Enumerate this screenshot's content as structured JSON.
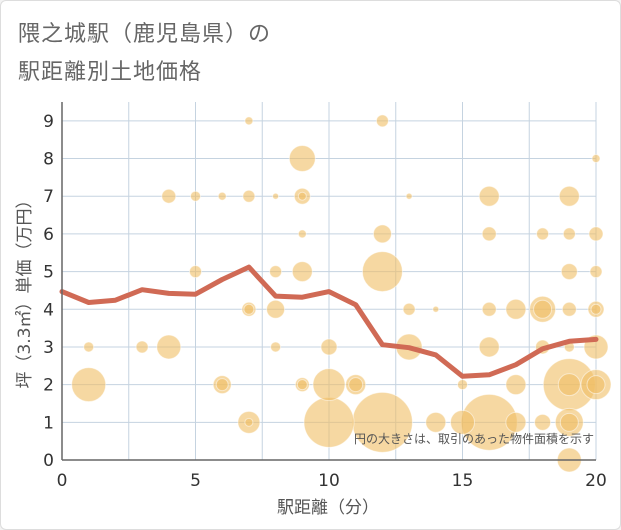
{
  "title_line1": "隈之城駅（鹿児島県）の",
  "title_line2": "駅距離別土地価格",
  "chart_data": {
    "type": "scatter",
    "xlabel": "駅距離（分）",
    "ylabel": "坪（3.3㎡）単価（万円）",
    "xlim": [
      0,
      20
    ],
    "ylim": [
      0,
      9.5
    ],
    "xticks": [
      "0",
      "5",
      "10",
      "15",
      "20"
    ],
    "yticks": [
      "0",
      "1",
      "2",
      "3",
      "4",
      "5",
      "6",
      "7",
      "8",
      "9"
    ],
    "grid": true,
    "note": "円の大きさは、取引のあった物件面積を示す",
    "colors": {
      "bubble": "#f0be64",
      "line": "#d06a55",
      "grid": "#c5d3e0",
      "axis": "#666666"
    },
    "bubbles": [
      {
        "x": 1,
        "y": 2.0,
        "s": 17
      },
      {
        "x": 1,
        "y": 3.0,
        "s": 5
      },
      {
        "x": 3,
        "y": 3.0,
        "s": 6
      },
      {
        "x": 4,
        "y": 3.0,
        "s": 12
      },
      {
        "x": 4,
        "y": 7.0,
        "s": 7
      },
      {
        "x": 5,
        "y": 7.0,
        "s": 5
      },
      {
        "x": 5,
        "y": 5.0,
        "s": 6
      },
      {
        "x": 6,
        "y": 7.0,
        "s": 4
      },
      {
        "x": 6,
        "y": 2.0,
        "s": 9
      },
      {
        "x": 6,
        "y": 2.0,
        "s": 6
      },
      {
        "x": 7,
        "y": 9.0,
        "s": 4
      },
      {
        "x": 7,
        "y": 7.0,
        "s": 6
      },
      {
        "x": 7,
        "y": 4.0,
        "s": 7
      },
      {
        "x": 7,
        "y": 4.0,
        "s": 5
      },
      {
        "x": 7,
        "y": 1.0,
        "s": 11
      },
      {
        "x": 7,
        "y": 1.0,
        "s": 4
      },
      {
        "x": 8,
        "y": 7.0,
        "s": 3
      },
      {
        "x": 8,
        "y": 5.0,
        "s": 6
      },
      {
        "x": 8,
        "y": 4.0,
        "s": 9
      },
      {
        "x": 8,
        "y": 3.0,
        "s": 5
      },
      {
        "x": 9,
        "y": 8.0,
        "s": 13
      },
      {
        "x": 9,
        "y": 7.0,
        "s": 8
      },
      {
        "x": 9,
        "y": 7.0,
        "s": 4
      },
      {
        "x": 9,
        "y": 6.0,
        "s": 4
      },
      {
        "x": 9,
        "y": 5.0,
        "s": 10
      },
      {
        "x": 9,
        "y": 2.0,
        "s": 7
      },
      {
        "x": 9,
        "y": 2.0,
        "s": 5
      },
      {
        "x": 10,
        "y": 3.0,
        "s": 8
      },
      {
        "x": 10,
        "y": 2.0,
        "s": 16
      },
      {
        "x": 10,
        "y": 1.0,
        "s": 25
      },
      {
        "x": 11,
        "y": 2.0,
        "s": 10
      },
      {
        "x": 11,
        "y": 2.0,
        "s": 7
      },
      {
        "x": 12,
        "y": 9.0,
        "s": 6
      },
      {
        "x": 12,
        "y": 6.0,
        "s": 9
      },
      {
        "x": 12,
        "y": 5.0,
        "s": 20
      },
      {
        "x": 12,
        "y": 1.0,
        "s": 30
      },
      {
        "x": 13,
        "y": 7.0,
        "s": 3
      },
      {
        "x": 13,
        "y": 4.0,
        "s": 6
      },
      {
        "x": 13,
        "y": 3.0,
        "s": 13
      },
      {
        "x": 14,
        "y": 4.0,
        "s": 3
      },
      {
        "x": 14,
        "y": 1.0,
        "s": 10
      },
      {
        "x": 15,
        "y": 2.0,
        "s": 5
      },
      {
        "x": 15,
        "y": 1.0,
        "s": 12
      },
      {
        "x": 16,
        "y": 7.0,
        "s": 10
      },
      {
        "x": 16,
        "y": 6.0,
        "s": 7
      },
      {
        "x": 16,
        "y": 4.0,
        "s": 7
      },
      {
        "x": 16,
        "y": 3.0,
        "s": 10
      },
      {
        "x": 16,
        "y": 1.0,
        "s": 28
      },
      {
        "x": 17,
        "y": 4.0,
        "s": 10
      },
      {
        "x": 17,
        "y": 2.0,
        "s": 10
      },
      {
        "x": 17,
        "y": 1.0,
        "s": 10
      },
      {
        "x": 18,
        "y": 6.0,
        "s": 6
      },
      {
        "x": 18,
        "y": 4.0,
        "s": 13
      },
      {
        "x": 18,
        "y": 4.0,
        "s": 9
      },
      {
        "x": 18,
        "y": 3.0,
        "s": 7
      },
      {
        "x": 18,
        "y": 1.0,
        "s": 8
      },
      {
        "x": 19,
        "y": 7.0,
        "s": 10
      },
      {
        "x": 19,
        "y": 6.0,
        "s": 6
      },
      {
        "x": 19,
        "y": 5.0,
        "s": 8
      },
      {
        "x": 19,
        "y": 4.0,
        "s": 7
      },
      {
        "x": 19,
        "y": 3.0,
        "s": 5
      },
      {
        "x": 19,
        "y": 2.0,
        "s": 26
      },
      {
        "x": 19,
        "y": 2.0,
        "s": 11
      },
      {
        "x": 19,
        "y": 1.0,
        "s": 14
      },
      {
        "x": 19,
        "y": 1.0,
        "s": 9
      },
      {
        "x": 19,
        "y": 0,
        "s": 12
      },
      {
        "x": 20,
        "y": 8.0,
        "s": 4
      },
      {
        "x": 20,
        "y": 6.0,
        "s": 7
      },
      {
        "x": 20,
        "y": 5.0,
        "s": 6
      },
      {
        "x": 20,
        "y": 4.0,
        "s": 8
      },
      {
        "x": 20,
        "y": 4.0,
        "s": 5
      },
      {
        "x": 20,
        "y": 3.0,
        "s": 12
      },
      {
        "x": 20,
        "y": 2.0,
        "s": 15
      },
      {
        "x": 20,
        "y": 2.0,
        "s": 9
      }
    ],
    "trend": [
      {
        "x": 0,
        "y": 4.47
      },
      {
        "x": 1,
        "y": 4.18
      },
      {
        "x": 2,
        "y": 4.24
      },
      {
        "x": 3,
        "y": 4.52
      },
      {
        "x": 4,
        "y": 4.42
      },
      {
        "x": 5,
        "y": 4.4
      },
      {
        "x": 6,
        "y": 4.79
      },
      {
        "x": 7,
        "y": 5.12
      },
      {
        "x": 8,
        "y": 4.35
      },
      {
        "x": 9,
        "y": 4.32
      },
      {
        "x": 10,
        "y": 4.47
      },
      {
        "x": 11,
        "y": 4.12
      },
      {
        "x": 12,
        "y": 3.06
      },
      {
        "x": 13,
        "y": 2.98
      },
      {
        "x": 14,
        "y": 2.79
      },
      {
        "x": 15,
        "y": 2.22
      },
      {
        "x": 16,
        "y": 2.26
      },
      {
        "x": 17,
        "y": 2.53
      },
      {
        "x": 18,
        "y": 2.95
      },
      {
        "x": 19,
        "y": 3.15
      },
      {
        "x": 20,
        "y": 3.2
      }
    ]
  }
}
